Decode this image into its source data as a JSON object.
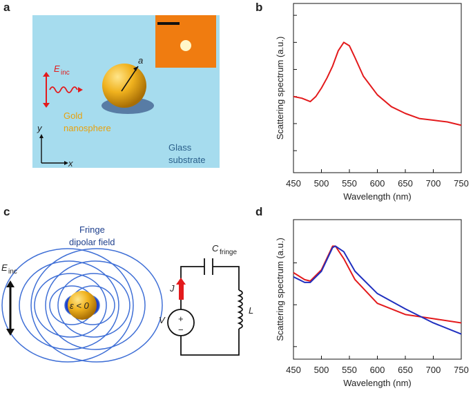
{
  "labels": {
    "a": "a",
    "b": "b",
    "c": "c",
    "d": "d"
  },
  "panel_a": {
    "e": "E",
    "e_sub": "inc",
    "radius": "a",
    "gold": "Gold",
    "nanosphere": "nanosphere",
    "glass": "Glass",
    "substrate": "substrate",
    "y": "y",
    "x": "x"
  },
  "panel_c": {
    "fringe": "Fringe",
    "dipolar": "dipolar field",
    "e": "E",
    "e_sub": "inc",
    "epsilon": "ε < 0",
    "c": "C",
    "c_sub": "fringe",
    "j": "J",
    "v": "V",
    "l": "L",
    "plus": "+",
    "minus": "−"
  },
  "chart_data": [
    {
      "type": "line",
      "xlabel": "Wavelength (nm)",
      "ylabel": "Scattering spectrum (a.u.)",
      "x": [
        450,
        465,
        480,
        490,
        500,
        510,
        520,
        530,
        540,
        550,
        560,
        575,
        600,
        625,
        650,
        675,
        700,
        725,
        750
      ],
      "series": [
        {
          "color": "#e31a1c",
          "values": [
            0.45,
            0.44,
            0.42,
            0.45,
            0.5,
            0.56,
            0.63,
            0.72,
            0.77,
            0.75,
            0.68,
            0.57,
            0.46,
            0.39,
            0.35,
            0.32,
            0.31,
            0.3,
            0.28
          ]
        }
      ],
      "xlim": [
        450,
        750
      ],
      "xticks": [
        450,
        500,
        550,
        600,
        650,
        700,
        750
      ],
      "ylim": [
        0,
        1
      ],
      "yticks": [
        0.13,
        0.29,
        0.45,
        0.61,
        0.77,
        0.93
      ]
    },
    {
      "type": "line",
      "xlabel": "Wavelength (nm)",
      "ylabel": "Scattering spectrum (a.u.)",
      "x": [
        450,
        470,
        480,
        500,
        520,
        525,
        540,
        560,
        600,
        650,
        700,
        750
      ],
      "series": [
        {
          "color": "#e31a1c",
          "values": [
            0.62,
            0.57,
            0.56,
            0.64,
            0.81,
            0.81,
            0.72,
            0.57,
            0.4,
            0.32,
            0.29,
            0.26
          ]
        },
        {
          "color": "#1f2fbf",
          "values": [
            0.59,
            0.55,
            0.55,
            0.63,
            0.8,
            0.81,
            0.77,
            0.63,
            0.47,
            0.36,
            0.26,
            0.18
          ]
        }
      ],
      "xlim": [
        450,
        750
      ],
      "xticks": [
        450,
        500,
        550,
        600,
        650,
        700,
        750
      ],
      "ylim": [
        0,
        1
      ],
      "yticks": [
        0.09,
        0.39,
        0.69
      ]
    }
  ]
}
